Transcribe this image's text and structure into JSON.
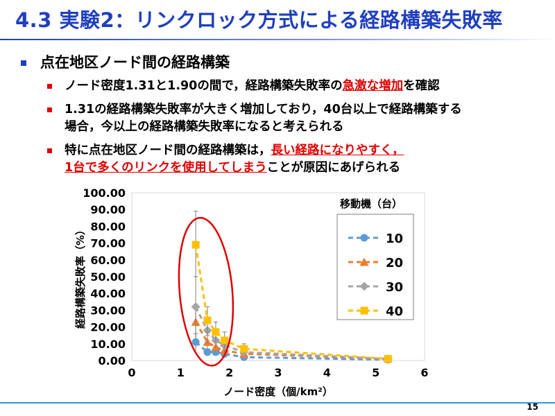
{
  "slide": {
    "title": "4.3 実験2：リンクロック方式による経路構築失敗率",
    "page_number": "15"
  },
  "bullets": {
    "main": "点在地区ノード間の経路構築",
    "b1": {
      "pre": "ノード密度1.31と1.90の間で，経路構築失敗率の",
      "hl": "急激な増加",
      "post": "を確認"
    },
    "b2": {
      "line1": "1.31の経路構築失敗率が大きく増加しており，40台以上で経路構築する",
      "line2": "場合，今以上の経路構築失敗率になると考えられる"
    },
    "b3": {
      "pre": "特に点在地区ノード間の経路構築は，",
      "hl1": "長い経路になりやすく，",
      "hl2": "1台で多くのリンクを使用してしまう",
      "post": "ことが原因にあげられる"
    }
  },
  "chart_data": {
    "type": "scatter",
    "title": "",
    "xlabel": "ノード密度（個/km²）",
    "ylabel": "経路構築失敗率（%）",
    "xlim": [
      0,
      6
    ],
    "ylim": [
      0,
      100
    ],
    "x_ticks": [
      "0",
      "1",
      "2",
      "3",
      "4",
      "5",
      "6"
    ],
    "y_ticks": [
      "0.00",
      "10.00",
      "20.00",
      "30.00",
      "40.00",
      "50.00",
      "60.00",
      "70.00",
      "80.00",
      "90.00",
      "100.00"
    ],
    "legend_title": "移動機（台）",
    "legend_position": "right",
    "grid": false,
    "series": [
      {
        "name": "10",
        "color": "#5b9bd5",
        "marker": "circle",
        "points": [
          [
            1.31,
            11
          ],
          [
            1.55,
            5
          ],
          [
            1.72,
            5
          ],
          [
            1.9,
            4
          ],
          [
            2.3,
            2
          ],
          [
            5.25,
            0.5
          ]
        ],
        "errors": [
          5,
          2,
          2,
          2,
          1,
          0.5
        ]
      },
      {
        "name": "20",
        "color": "#ed7d31",
        "marker": "triangle",
        "points": [
          [
            1.31,
            23
          ],
          [
            1.55,
            11
          ],
          [
            1.72,
            8
          ],
          [
            1.9,
            6
          ],
          [
            2.3,
            4
          ],
          [
            5.25,
            1
          ]
        ],
        "errors": [
          10,
          4,
          3,
          3,
          2,
          1
        ]
      },
      {
        "name": "30",
        "color": "#a5a5a5",
        "marker": "diamond",
        "points": [
          [
            1.31,
            32
          ],
          [
            1.55,
            18
          ],
          [
            1.72,
            12
          ],
          [
            1.9,
            9
          ],
          [
            2.3,
            5
          ],
          [
            5.25,
            1
          ]
        ],
        "errors": [
          18,
          8,
          5,
          4,
          2,
          1
        ]
      },
      {
        "name": "40",
        "color": "#ffc000",
        "marker": "square",
        "points": [
          [
            1.31,
            69
          ],
          [
            1.55,
            24
          ],
          [
            1.72,
            17
          ],
          [
            1.9,
            12
          ],
          [
            2.3,
            7
          ],
          [
            5.25,
            1
          ]
        ],
        "errors": [
          20,
          8,
          6,
          5,
          3,
          1
        ]
      }
    ],
    "annotation": {
      "type": "ellipse",
      "color": "#e00000"
    }
  }
}
